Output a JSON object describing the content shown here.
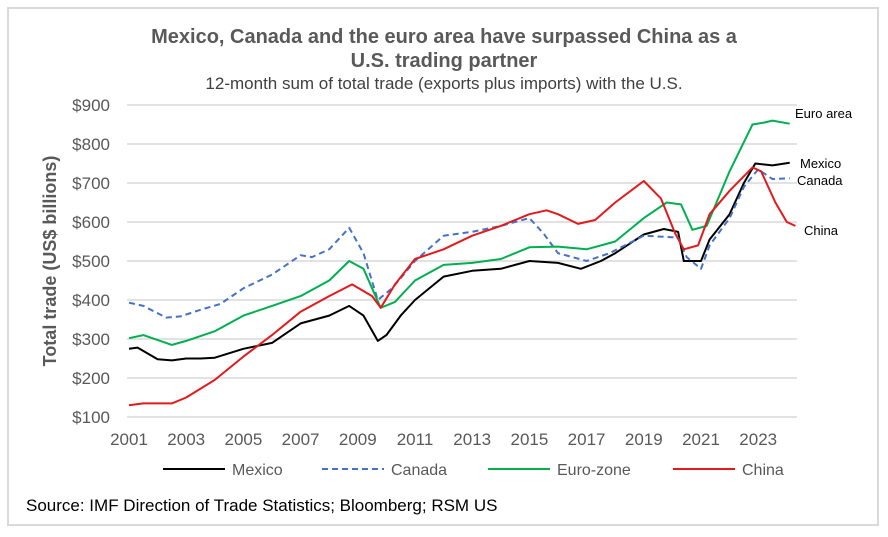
{
  "chart_data": {
    "type": "line",
    "title": "Mexico, Canada and the euro area have surpassed China as a U.S. trading partner",
    "title_lines": [
      "Mexico, Canada and the euro area have surpassed China as a",
      "U.S. trading partner"
    ],
    "subtitle": "12-month sum of total trade (exports plus imports) with the U.S.",
    "xlabel": "",
    "ylabel": "Total trade (US$ billions)",
    "ylim": [
      100,
      900
    ],
    "xlim": [
      2001,
      2024.3
    ],
    "yticks": [
      100,
      200,
      300,
      400,
      500,
      600,
      700,
      800,
      900
    ],
    "ytick_labels": [
      "$100",
      "$200",
      "$300",
      "$400",
      "$500",
      "$600",
      "$700",
      "$800",
      "$900"
    ],
    "xticks": [
      2001,
      2003,
      2005,
      2007,
      2009,
      2011,
      2013,
      2015,
      2017,
      2019,
      2021,
      2023
    ],
    "xtick_labels": [
      "2001",
      "2003",
      "2005",
      "2007",
      "2009",
      "2011",
      "2013",
      "2015",
      "2017",
      "2019",
      "2021",
      "2023"
    ],
    "grid": "horizontal",
    "legend_position": "bottom",
    "series": [
      {
        "name": "Mexico",
        "end_label": "Mexico",
        "color": "#000000",
        "dash": false,
        "x": [
          2001,
          2001.3,
          2002,
          2002.5,
          2003,
          2003.5,
          2004,
          2005,
          2006,
          2007,
          2008,
          2008.7,
          2009.2,
          2009.7,
          2010,
          2010.5,
          2011,
          2012,
          2013,
          2014,
          2015,
          2016,
          2016.8,
          2017.5,
          2018,
          2019,
          2019.7,
          2020.2,
          2020.4,
          2021,
          2021.3,
          2022,
          2022.5,
          2022.9,
          2023.5,
          2024.1
        ],
        "values": [
          275,
          278,
          248,
          245,
          250,
          250,
          252,
          275,
          290,
          340,
          360,
          385,
          360,
          295,
          310,
          360,
          400,
          460,
          475,
          480,
          500,
          495,
          480,
          500,
          520,
          568,
          582,
          575,
          500,
          500,
          555,
          620,
          700,
          750,
          745,
          752
        ]
      },
      {
        "name": "Canada",
        "end_label": "Canada",
        "color": "#4472c4",
        "dash": true,
        "x": [
          2001,
          2001.5,
          2002.3,
          2002.8,
          2003.5,
          2004.2,
          2005,
          2006,
          2007,
          2007.4,
          2008,
          2008.7,
          2009.2,
          2009.7,
          2010.2,
          2011,
          2012,
          2013,
          2014,
          2015,
          2015.5,
          2016,
          2017,
          2017.8,
          2019,
          2020.2,
          2020.5,
          2021,
          2021.3,
          2022,
          2022.5,
          2023,
          2023.5,
          2024.1
        ],
        "values": [
          393,
          385,
          355,
          358,
          375,
          390,
          430,
          465,
          515,
          510,
          530,
          585,
          520,
          400,
          430,
          500,
          565,
          575,
          590,
          610,
          570,
          520,
          500,
          520,
          565,
          560,
          510,
          480,
          540,
          610,
          690,
          735,
          710,
          712
        ]
      },
      {
        "name": "Euro-zone",
        "end_label": "Euro area",
        "color": "#00b050",
        "dash": false,
        "x": [
          2001,
          2001.5,
          2002.5,
          2003,
          2004,
          2005,
          2006,
          2007,
          2008,
          2008.7,
          2009.2,
          2009.8,
          2010.3,
          2011,
          2012,
          2013,
          2014,
          2015,
          2016,
          2017,
          2018,
          2019,
          2019.8,
          2020.3,
          2020.7,
          2021.2,
          2022,
          2022.8,
          2023.2,
          2023.5,
          2024.1
        ],
        "values": [
          302,
          310,
          285,
          295,
          320,
          360,
          385,
          410,
          450,
          500,
          480,
          380,
          395,
          450,
          490,
          495,
          505,
          535,
          537,
          530,
          550,
          610,
          650,
          645,
          580,
          590,
          730,
          850,
          855,
          860,
          852
        ]
      },
      {
        "name": "China",
        "end_label": "China",
        "color": "#e31a1c",
        "dash": false,
        "x": [
          2001,
          2001.5,
          2002.5,
          2003,
          2004,
          2005,
          2006,
          2007,
          2008,
          2008.8,
          2009.5,
          2009.8,
          2010.3,
          2011,
          2012,
          2013,
          2014,
          2015,
          2015.6,
          2016,
          2016.7,
          2017.3,
          2018,
          2019,
          2019.6,
          2020.1,
          2020.4,
          2020.9,
          2021.3,
          2022,
          2022.8,
          2023.1,
          2023.6,
          2024,
          2024.3
        ],
        "values": [
          130,
          135,
          135,
          150,
          195,
          255,
          310,
          370,
          410,
          440,
          410,
          380,
          440,
          505,
          530,
          565,
          590,
          620,
          630,
          620,
          595,
          605,
          650,
          705,
          660,
          570,
          530,
          540,
          620,
          680,
          740,
          730,
          650,
          600,
          590
        ]
      }
    ],
    "source": "Source: IMF Direction of Trade Statistics; Bloomberg; RSM US",
    "colors": {
      "gridline": "#d9d9d9",
      "text": "#595959",
      "frame": "#d9d9d9"
    }
  }
}
